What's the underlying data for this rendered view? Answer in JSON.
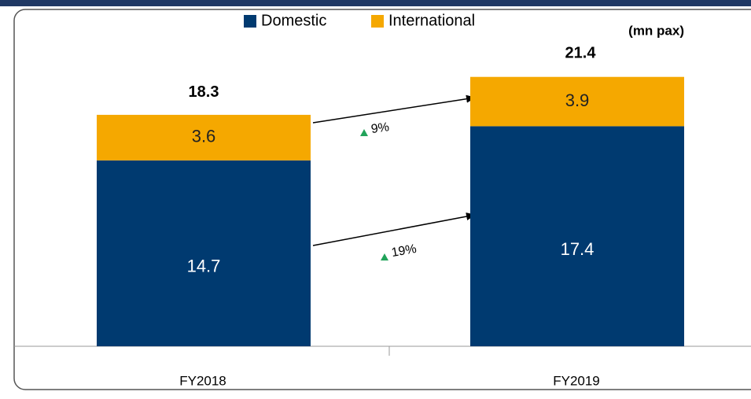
{
  "chart_data": {
    "type": "stacked_bar",
    "unit_label": "(mn pax)",
    "categories": [
      "FY2018",
      "FY2019"
    ],
    "series": [
      {
        "name": "Domestic",
        "color": "#003a70",
        "values": [
          14.7,
          17.4
        ]
      },
      {
        "name": "International",
        "color": "#f5a800",
        "values": [
          3.6,
          3.9
        ]
      }
    ],
    "totals": [
      18.3,
      21.4
    ],
    "annotations": [
      {
        "text": "9%",
        "series": "International"
      },
      {
        "text": "19%",
        "series": "Domestic"
      }
    ]
  }
}
